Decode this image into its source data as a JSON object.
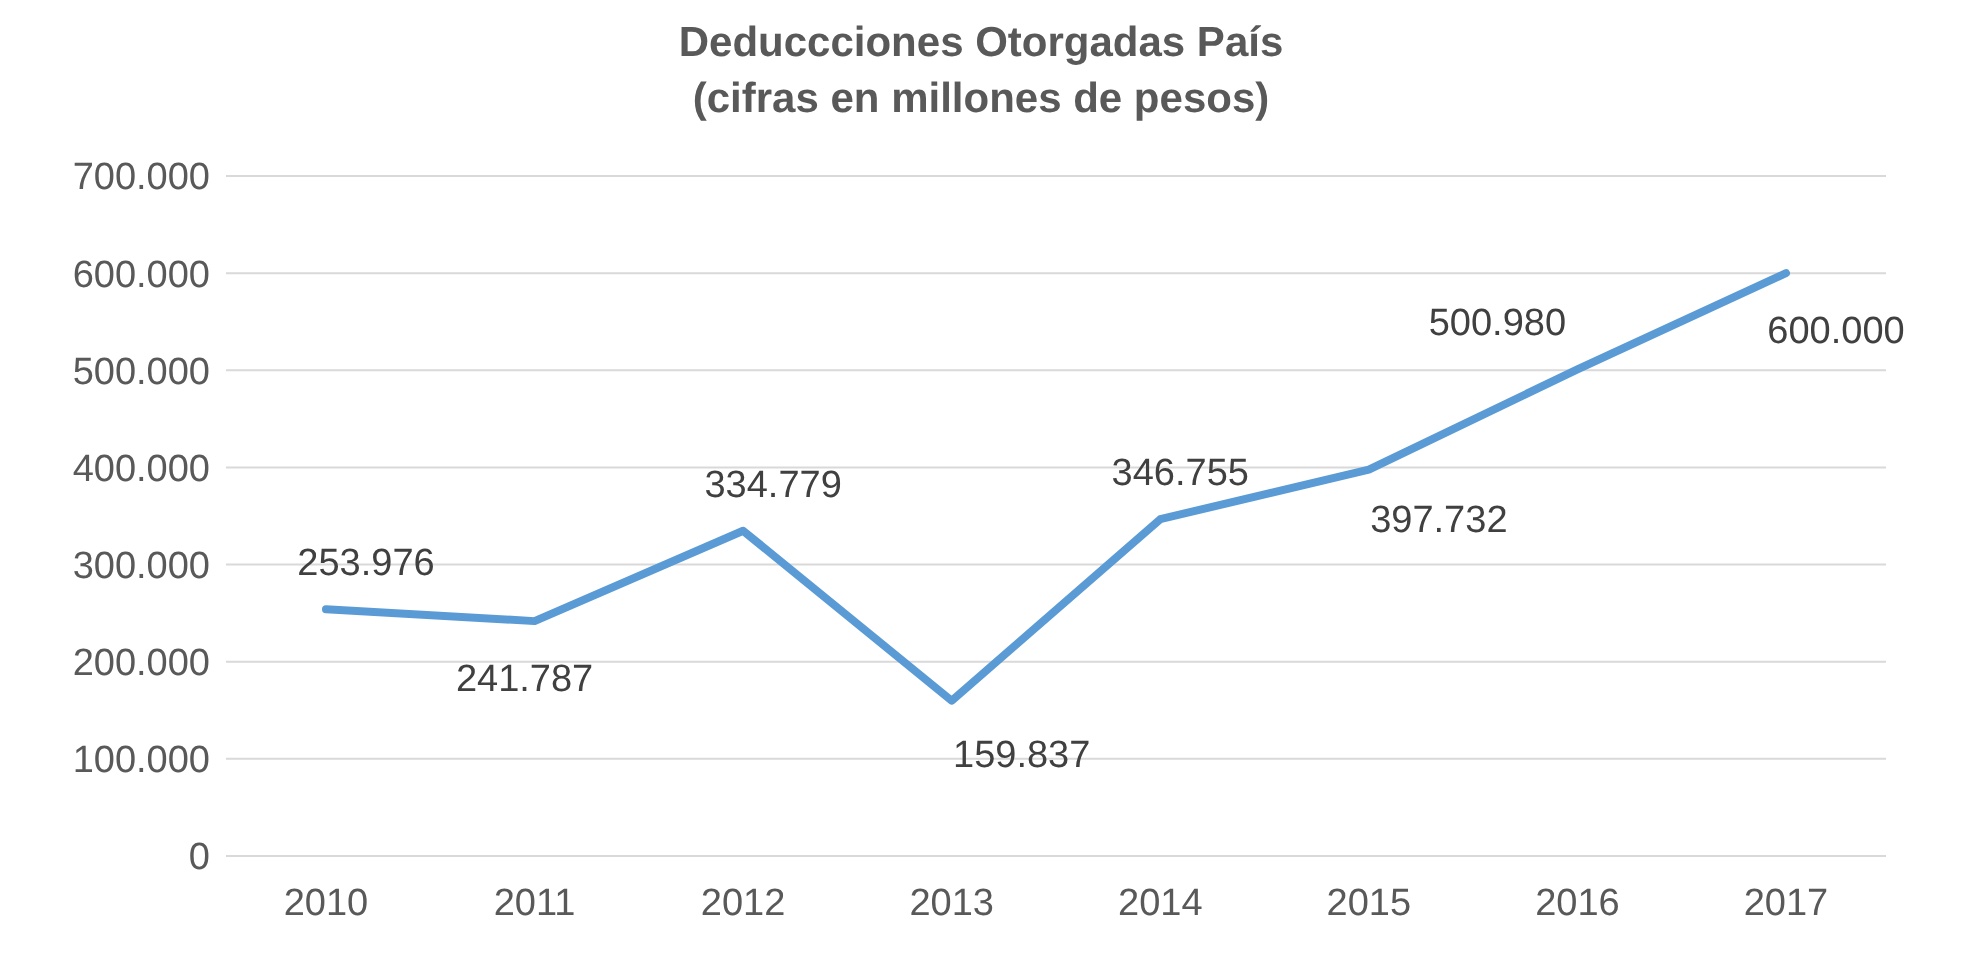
{
  "chart_data": {
    "type": "line",
    "title": "Deduccciones Otorgadas País",
    "subtitle": "(cifras en millones de pesos)",
    "categories": [
      "2010",
      "2011",
      "2012",
      "2013",
      "2014",
      "2015",
      "2016",
      "2017"
    ],
    "series": [
      {
        "color": "#5b9bd5",
        "values": [
          253976,
          241787,
          334779,
          159837,
          346755,
          397732,
          500980,
          600000
        ],
        "value_labels": [
          "253.976",
          "241.787",
          "334.779",
          "159.837",
          "346.755",
          "397.732",
          "500.980",
          "600.000"
        ]
      }
    ],
    "ylim": [
      0,
      700000
    ],
    "yticks": [
      {
        "value": 0,
        "label": "0"
      },
      {
        "value": 100000,
        "label": "100.000"
      },
      {
        "value": 200000,
        "label": "200.000"
      },
      {
        "value": 300000,
        "label": "300.000"
      },
      {
        "value": 400000,
        "label": "400.000"
      },
      {
        "value": 500000,
        "label": "500.000"
      },
      {
        "value": 600000,
        "label": "600.000"
      },
      {
        "value": 700000,
        "label": "700.000"
      }
    ],
    "grid": "y",
    "marker": "none",
    "line_style": "solid"
  }
}
